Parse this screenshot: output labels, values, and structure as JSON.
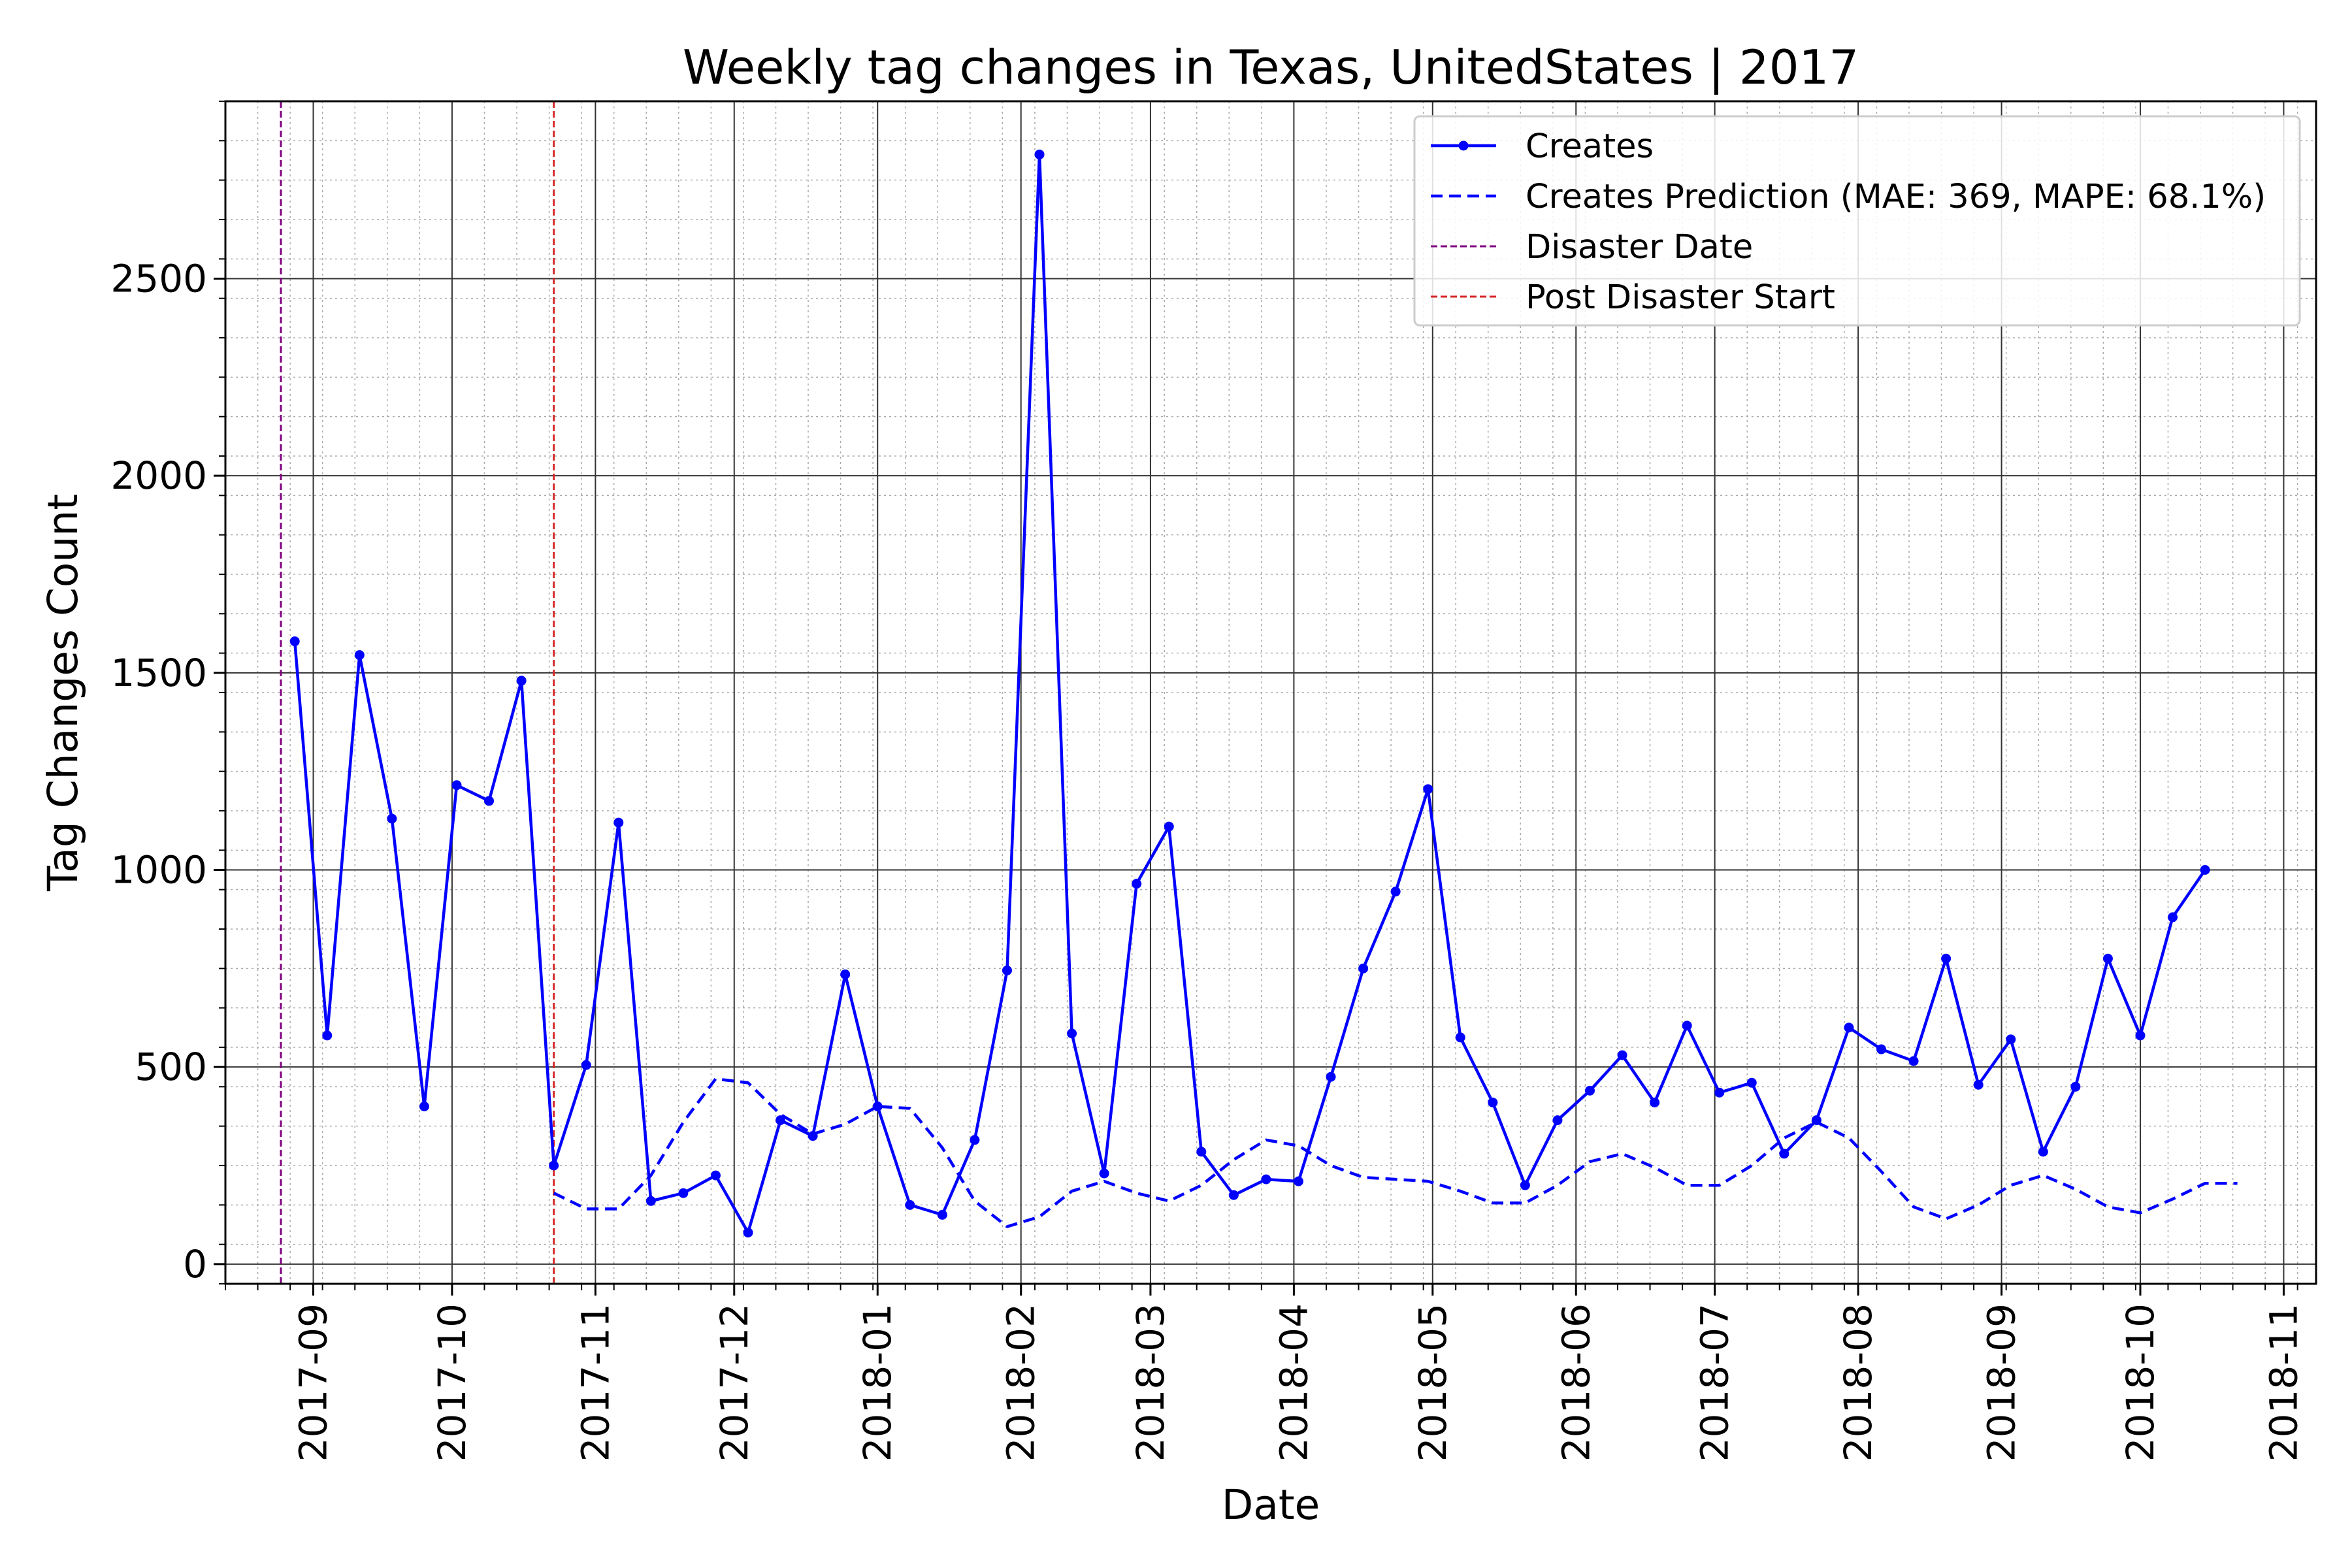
{
  "chart_data": {
    "type": "line",
    "title": "Weekly tag changes in Texas, UnitedStates | 2017",
    "xlabel": "Date",
    "ylabel": "Tag Changes Count",
    "x_axis_type": "date",
    "xlim": [
      "2017-08-13",
      "2018-11-08"
    ],
    "ylim": [
      -50,
      2950
    ],
    "x_ticks": [
      "2017-09",
      "2017-10",
      "2017-11",
      "2017-12",
      "2018-01",
      "2018-02",
      "2018-03",
      "2018-04",
      "2018-05",
      "2018-06",
      "2018-07",
      "2018-08",
      "2018-09",
      "2018-10",
      "2018-11"
    ],
    "y_ticks": [
      0,
      500,
      1000,
      1500,
      2000,
      2500
    ],
    "grid": "major solid, minor dotted",
    "legend_position": "top-right",
    "series": [
      {
        "name": "Creates",
        "style": "solid line with dot markers",
        "color": "#0000ff",
        "points": [
          [
            "2017-08-28",
            1580
          ],
          [
            "2017-09-04",
            580
          ],
          [
            "2017-09-11",
            1545
          ],
          [
            "2017-09-18",
            1130
          ],
          [
            "2017-09-25",
            400
          ],
          [
            "2017-10-02",
            1215
          ],
          [
            "2017-10-09",
            1175
          ],
          [
            "2017-10-16",
            1480
          ],
          [
            "2017-10-23",
            250
          ],
          [
            "2017-10-30",
            505
          ],
          [
            "2017-11-06",
            1120
          ],
          [
            "2017-11-13",
            160
          ],
          [
            "2017-11-20",
            180
          ],
          [
            "2017-11-27",
            225
          ],
          [
            "2017-12-04",
            80
          ],
          [
            "2017-12-11",
            365
          ],
          [
            "2017-12-18",
            325
          ],
          [
            "2017-12-25",
            735
          ],
          [
            "2018-01-01",
            400
          ],
          [
            "2018-01-08",
            150
          ],
          [
            "2018-01-15",
            125
          ],
          [
            "2018-01-22",
            315
          ],
          [
            "2018-01-29",
            745
          ],
          [
            "2018-02-05",
            2815
          ],
          [
            "2018-02-12",
            585
          ],
          [
            "2018-02-19",
            230
          ],
          [
            "2018-02-26",
            965
          ],
          [
            "2018-03-05",
            1110
          ],
          [
            "2018-03-12",
            285
          ],
          [
            "2018-03-19",
            175
          ],
          [
            "2018-03-26",
            215
          ],
          [
            "2018-04-02",
            210
          ],
          [
            "2018-04-09",
            475
          ],
          [
            "2018-04-16",
            750
          ],
          [
            "2018-04-23",
            945
          ],
          [
            "2018-04-30",
            1205
          ],
          [
            "2018-05-07",
            575
          ],
          [
            "2018-05-14",
            410
          ],
          [
            "2018-05-21",
            200
          ],
          [
            "2018-05-28",
            365
          ],
          [
            "2018-06-04",
            440
          ],
          [
            "2018-06-11",
            530
          ],
          [
            "2018-06-18",
            410
          ],
          [
            "2018-06-25",
            605
          ],
          [
            "2018-07-02",
            435
          ],
          [
            "2018-07-09",
            460
          ],
          [
            "2018-07-16",
            280
          ],
          [
            "2018-07-23",
            365
          ],
          [
            "2018-07-30",
            600
          ],
          [
            "2018-08-06",
            545
          ],
          [
            "2018-08-13",
            515
          ],
          [
            "2018-08-20",
            775
          ],
          [
            "2018-08-27",
            455
          ],
          [
            "2018-09-03",
            570
          ],
          [
            "2018-09-10",
            285
          ],
          [
            "2018-09-17",
            450
          ],
          [
            "2018-09-24",
            775
          ],
          [
            "2018-10-01",
            580
          ],
          [
            "2018-10-08",
            880
          ],
          [
            "2018-10-15",
            1000
          ]
        ]
      },
      {
        "name": "Creates Prediction (MAE: 369, MAPE: 68.1%)",
        "style": "dashed line",
        "color": "#0000ff",
        "points": [
          [
            "2017-10-23",
            180
          ],
          [
            "2017-10-30",
            140
          ],
          [
            "2017-11-06",
            140
          ],
          [
            "2017-11-13",
            225
          ],
          [
            "2017-11-20",
            360
          ],
          [
            "2017-11-27",
            470
          ],
          [
            "2017-12-04",
            460
          ],
          [
            "2017-12-11",
            380
          ],
          [
            "2017-12-18",
            330
          ],
          [
            "2017-12-25",
            355
          ],
          [
            "2018-01-01",
            400
          ],
          [
            "2018-01-08",
            395
          ],
          [
            "2018-01-15",
            295
          ],
          [
            "2018-01-22",
            160
          ],
          [
            "2018-01-29",
            95
          ],
          [
            "2018-02-05",
            120
          ],
          [
            "2018-02-12",
            185
          ],
          [
            "2018-02-19",
            210
          ],
          [
            "2018-02-26",
            180
          ],
          [
            "2018-03-05",
            160
          ],
          [
            "2018-03-12",
            200
          ],
          [
            "2018-03-19",
            265
          ],
          [
            "2018-03-26",
            315
          ],
          [
            "2018-04-02",
            300
          ],
          [
            "2018-04-09",
            250
          ],
          [
            "2018-04-16",
            220
          ],
          [
            "2018-04-23",
            215
          ],
          [
            "2018-04-30",
            210
          ],
          [
            "2018-05-07",
            185
          ],
          [
            "2018-05-14",
            155
          ],
          [
            "2018-05-21",
            155
          ],
          [
            "2018-05-28",
            200
          ],
          [
            "2018-06-04",
            260
          ],
          [
            "2018-06-11",
            280
          ],
          [
            "2018-06-18",
            245
          ],
          [
            "2018-06-25",
            200
          ],
          [
            "2018-07-02",
            200
          ],
          [
            "2018-07-09",
            250
          ],
          [
            "2018-07-16",
            320
          ],
          [
            "2018-07-23",
            360
          ],
          [
            "2018-07-30",
            320
          ],
          [
            "2018-08-06",
            235
          ],
          [
            "2018-08-13",
            145
          ],
          [
            "2018-08-20",
            115
          ],
          [
            "2018-08-27",
            150
          ],
          [
            "2018-09-03",
            200
          ],
          [
            "2018-09-10",
            225
          ],
          [
            "2018-09-17",
            190
          ],
          [
            "2018-09-24",
            145
          ],
          [
            "2018-10-01",
            130
          ],
          [
            "2018-10-08",
            165
          ],
          [
            "2018-10-15",
            205
          ],
          [
            "2018-10-22",
            205
          ]
        ]
      }
    ],
    "vertical_lines": [
      {
        "name": "Disaster Date",
        "date": "2017-08-25",
        "style": "dashed",
        "color": "#800080"
      },
      {
        "name": "Post Disaster Start",
        "date": "2017-10-23",
        "style": "dashed",
        "color": "#d62728"
      }
    ]
  }
}
